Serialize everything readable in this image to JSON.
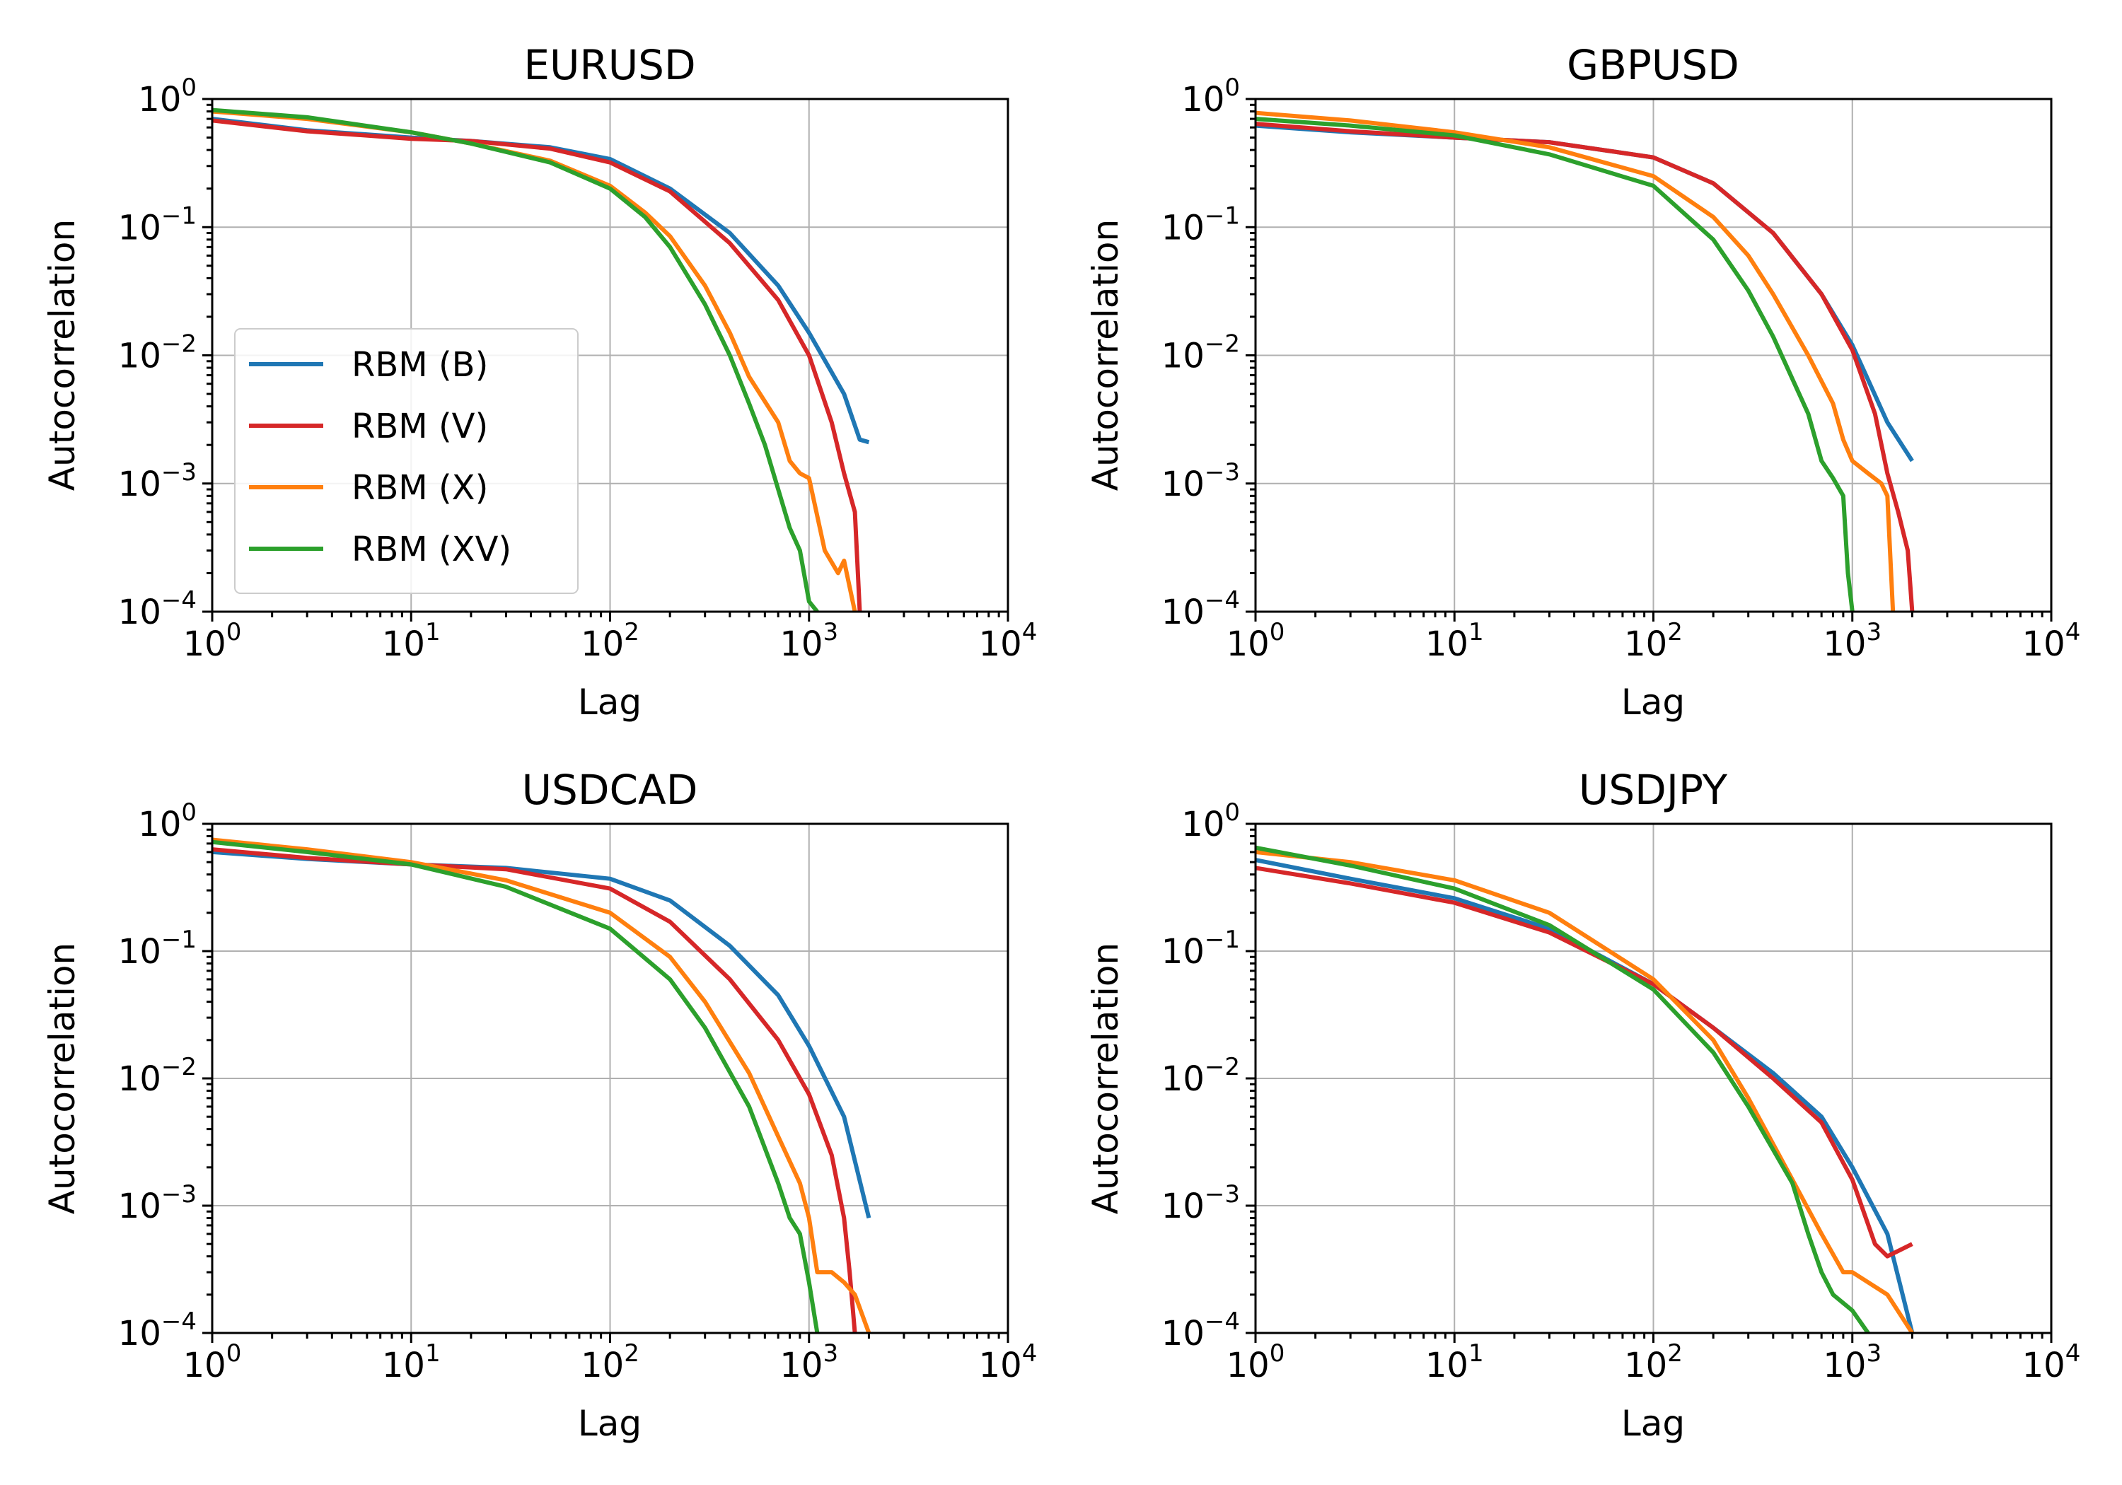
{
  "figure": {
    "background": "#ffffff"
  },
  "series_colors": {
    "RBM (B)": "#1f77b4",
    "RBM (V)": "#d62728",
    "RBM (X)": "#ff7f0e",
    "RBM (XV)": "#2ca02c"
  },
  "chart_data": [
    {
      "type": "line",
      "title": "EURUSD",
      "xlabel": "Lag",
      "ylabel": "Autocorrelation",
      "xscale": "log",
      "yscale": "log",
      "xlim": [
        1,
        10000
      ],
      "ylim": [
        0.0001,
        1
      ],
      "x_ticks": [
        "10^0",
        "10^1",
        "10^2",
        "10^3",
        "10^4"
      ],
      "y_ticks": [
        "10^0",
        "10^-1",
        "10^-2",
        "10^-3",
        "10^-4"
      ],
      "grid": true,
      "legend": {
        "show": true,
        "position": "center-left",
        "entries": [
          "RBM (B)",
          "RBM (V)",
          "RBM (X)",
          "RBM (XV)"
        ]
      },
      "series": [
        {
          "name": "RBM (B)",
          "color": "#1f77b4",
          "x": [
            1,
            3,
            10,
            20,
            50,
            100,
            200,
            400,
            700,
            1000,
            1500,
            1800,
            2000
          ],
          "y": [
            0.7,
            0.57,
            0.5,
            0.47,
            0.42,
            0.34,
            0.2,
            0.09,
            0.035,
            0.015,
            0.005,
            0.0022,
            0.0021
          ]
        },
        {
          "name": "RBM (V)",
          "color": "#d62728",
          "x": [
            1,
            3,
            10,
            20,
            50,
            100,
            200,
            400,
            700,
            1000,
            1300,
            1500,
            1700,
            1800
          ],
          "y": [
            0.68,
            0.56,
            0.49,
            0.47,
            0.41,
            0.32,
            0.19,
            0.075,
            0.027,
            0.01,
            0.003,
            0.0012,
            0.0006,
            0.0001
          ]
        },
        {
          "name": "RBM (X)",
          "color": "#ff7f0e",
          "x": [
            1,
            3,
            10,
            20,
            50,
            100,
            150,
            200,
            300,
            400,
            500,
            700,
            800,
            900,
            1000,
            1200,
            1400,
            1500,
            1700
          ],
          "y": [
            0.8,
            0.7,
            0.55,
            0.45,
            0.33,
            0.21,
            0.13,
            0.085,
            0.035,
            0.015,
            0.0068,
            0.003,
            0.0015,
            0.0012,
            0.0011,
            0.0003,
            0.0002,
            0.00025,
            0.0001
          ]
        },
        {
          "name": "RBM (XV)",
          "color": "#2ca02c",
          "x": [
            1,
            3,
            10,
            20,
            50,
            100,
            150,
            200,
            300,
            400,
            500,
            600,
            700,
            800,
            900,
            1000,
            1100
          ],
          "y": [
            0.82,
            0.72,
            0.55,
            0.45,
            0.32,
            0.2,
            0.12,
            0.07,
            0.025,
            0.01,
            0.0042,
            0.002,
            0.0009,
            0.00045,
            0.0003,
            0.00012,
            0.0001
          ]
        }
      ]
    },
    {
      "type": "line",
      "title": "GBPUSD",
      "xlabel": "Lag",
      "ylabel": "Autocorrelation",
      "xscale": "log",
      "yscale": "log",
      "xlim": [
        1,
        10000
      ],
      "ylim": [
        0.0001,
        1
      ],
      "x_ticks": [
        "10^0",
        "10^1",
        "10^2",
        "10^3",
        "10^4"
      ],
      "y_ticks": [
        "10^0",
        "10^-1",
        "10^-2",
        "10^-3",
        "10^-4"
      ],
      "grid": true,
      "legend": {
        "show": false
      },
      "series": [
        {
          "name": "RBM (B)",
          "color": "#1f77b4",
          "x": [
            1,
            3,
            10,
            30,
            100,
            200,
            400,
            700,
            1000,
            1500,
            2000
          ],
          "y": [
            0.62,
            0.55,
            0.5,
            0.46,
            0.35,
            0.22,
            0.09,
            0.03,
            0.012,
            0.003,
            0.0015
          ]
        },
        {
          "name": "RBM (V)",
          "color": "#d62728",
          "x": [
            1,
            3,
            10,
            30,
            100,
            200,
            400,
            700,
            1000,
            1300,
            1500,
            1700,
            1900,
            2000
          ],
          "y": [
            0.64,
            0.56,
            0.5,
            0.46,
            0.35,
            0.22,
            0.09,
            0.03,
            0.011,
            0.0035,
            0.0012,
            0.0006,
            0.0003,
            0.0001
          ]
        },
        {
          "name": "RBM (X)",
          "color": "#ff7f0e",
          "x": [
            1,
            3,
            10,
            30,
            100,
            200,
            300,
            400,
            600,
            800,
            900,
            1000,
            1200,
            1400,
            1500,
            1600
          ],
          "y": [
            0.78,
            0.68,
            0.55,
            0.42,
            0.25,
            0.12,
            0.06,
            0.03,
            0.01,
            0.0042,
            0.0022,
            0.0015,
            0.0012,
            0.001,
            0.0008,
            0.0001
          ]
        },
        {
          "name": "RBM (XV)",
          "color": "#2ca02c",
          "x": [
            1,
            3,
            10,
            30,
            100,
            200,
            300,
            400,
            600,
            700,
            800,
            900,
            950,
            1000
          ],
          "y": [
            0.7,
            0.62,
            0.52,
            0.37,
            0.21,
            0.08,
            0.032,
            0.014,
            0.0035,
            0.0015,
            0.0011,
            0.0008,
            0.0002,
            0.0001
          ]
        }
      ]
    },
    {
      "type": "line",
      "title": "USDCAD",
      "xlabel": "Lag",
      "ylabel": "Autocorrelation",
      "xscale": "log",
      "yscale": "log",
      "xlim": [
        1,
        10000
      ],
      "ylim": [
        0.0001,
        1
      ],
      "x_ticks": [
        "10^0",
        "10^1",
        "10^2",
        "10^3",
        "10^4"
      ],
      "y_ticks": [
        "10^0",
        "10^-1",
        "10^-2",
        "10^-3",
        "10^-4"
      ],
      "grid": true,
      "legend": {
        "show": false
      },
      "series": [
        {
          "name": "RBM (B)",
          "color": "#1f77b4",
          "x": [
            1,
            3,
            10,
            30,
            100,
            200,
            400,
            700,
            1000,
            1500,
            2000
          ],
          "y": [
            0.6,
            0.53,
            0.48,
            0.45,
            0.37,
            0.25,
            0.11,
            0.045,
            0.018,
            0.005,
            0.0008
          ]
        },
        {
          "name": "RBM (V)",
          "color": "#d62728",
          "x": [
            1,
            3,
            10,
            30,
            100,
            200,
            400,
            700,
            1000,
            1300,
            1500,
            1600,
            1700
          ],
          "y": [
            0.63,
            0.54,
            0.48,
            0.44,
            0.31,
            0.17,
            0.06,
            0.02,
            0.0075,
            0.0025,
            0.0008,
            0.0003,
            0.0001
          ]
        },
        {
          "name": "RBM (X)",
          "color": "#ff7f0e",
          "x": [
            1,
            3,
            10,
            30,
            100,
            200,
            300,
            500,
            700,
            900,
            1000,
            1100,
            1300,
            1500,
            1700,
            2000
          ],
          "y": [
            0.75,
            0.63,
            0.5,
            0.36,
            0.2,
            0.09,
            0.04,
            0.011,
            0.0035,
            0.0015,
            0.0008,
            0.0003,
            0.0003,
            0.00025,
            0.0002,
            0.0001
          ]
        },
        {
          "name": "RBM (XV)",
          "color": "#2ca02c",
          "x": [
            1,
            3,
            10,
            30,
            100,
            200,
            300,
            500,
            700,
            800,
            900,
            1000,
            1100
          ],
          "y": [
            0.72,
            0.6,
            0.48,
            0.32,
            0.15,
            0.06,
            0.025,
            0.006,
            0.0015,
            0.0008,
            0.0006,
            0.00025,
            0.0001
          ]
        }
      ]
    },
    {
      "type": "line",
      "title": "USDJPY",
      "xlabel": "Lag",
      "ylabel": "Autocorrelation",
      "xscale": "log",
      "yscale": "log",
      "xlim": [
        1,
        10000
      ],
      "ylim": [
        0.0001,
        1
      ],
      "x_ticks": [
        "10^0",
        "10^1",
        "10^2",
        "10^3",
        "10^4"
      ],
      "y_ticks": [
        "10^0",
        "10^-1",
        "10^-2",
        "10^-3",
        "10^-4"
      ],
      "grid": true,
      "legend": {
        "show": false
      },
      "series": [
        {
          "name": "RBM (B)",
          "color": "#1f77b4",
          "x": [
            1,
            3,
            10,
            30,
            100,
            200,
            400,
            700,
            1000,
            1500,
            2000
          ],
          "y": [
            0.52,
            0.37,
            0.26,
            0.15,
            0.055,
            0.025,
            0.011,
            0.005,
            0.002,
            0.0006,
            0.0001
          ]
        },
        {
          "name": "RBM (V)",
          "color": "#d62728",
          "x": [
            1,
            3,
            10,
            30,
            100,
            200,
            400,
            700,
            1000,
            1300,
            1500,
            2000
          ],
          "y": [
            0.45,
            0.34,
            0.24,
            0.14,
            0.055,
            0.025,
            0.01,
            0.0045,
            0.0016,
            0.0005,
            0.0004,
            0.0005
          ]
        },
        {
          "name": "RBM (X)",
          "color": "#ff7f0e",
          "x": [
            1,
            3,
            10,
            30,
            100,
            200,
            300,
            500,
            700,
            900,
            1000,
            1500,
            2000
          ],
          "y": [
            0.6,
            0.5,
            0.36,
            0.2,
            0.06,
            0.02,
            0.007,
            0.0016,
            0.0006,
            0.0003,
            0.0003,
            0.0002,
            0.0001
          ]
        },
        {
          "name": "RBM (XV)",
          "color": "#2ca02c",
          "x": [
            1,
            3,
            10,
            30,
            100,
            200,
            300,
            500,
            600,
            700,
            800,
            1000,
            1200
          ],
          "y": [
            0.65,
            0.47,
            0.31,
            0.16,
            0.05,
            0.016,
            0.006,
            0.0015,
            0.0006,
            0.0003,
            0.0002,
            0.00015,
            0.0001
          ]
        }
      ]
    }
  ]
}
